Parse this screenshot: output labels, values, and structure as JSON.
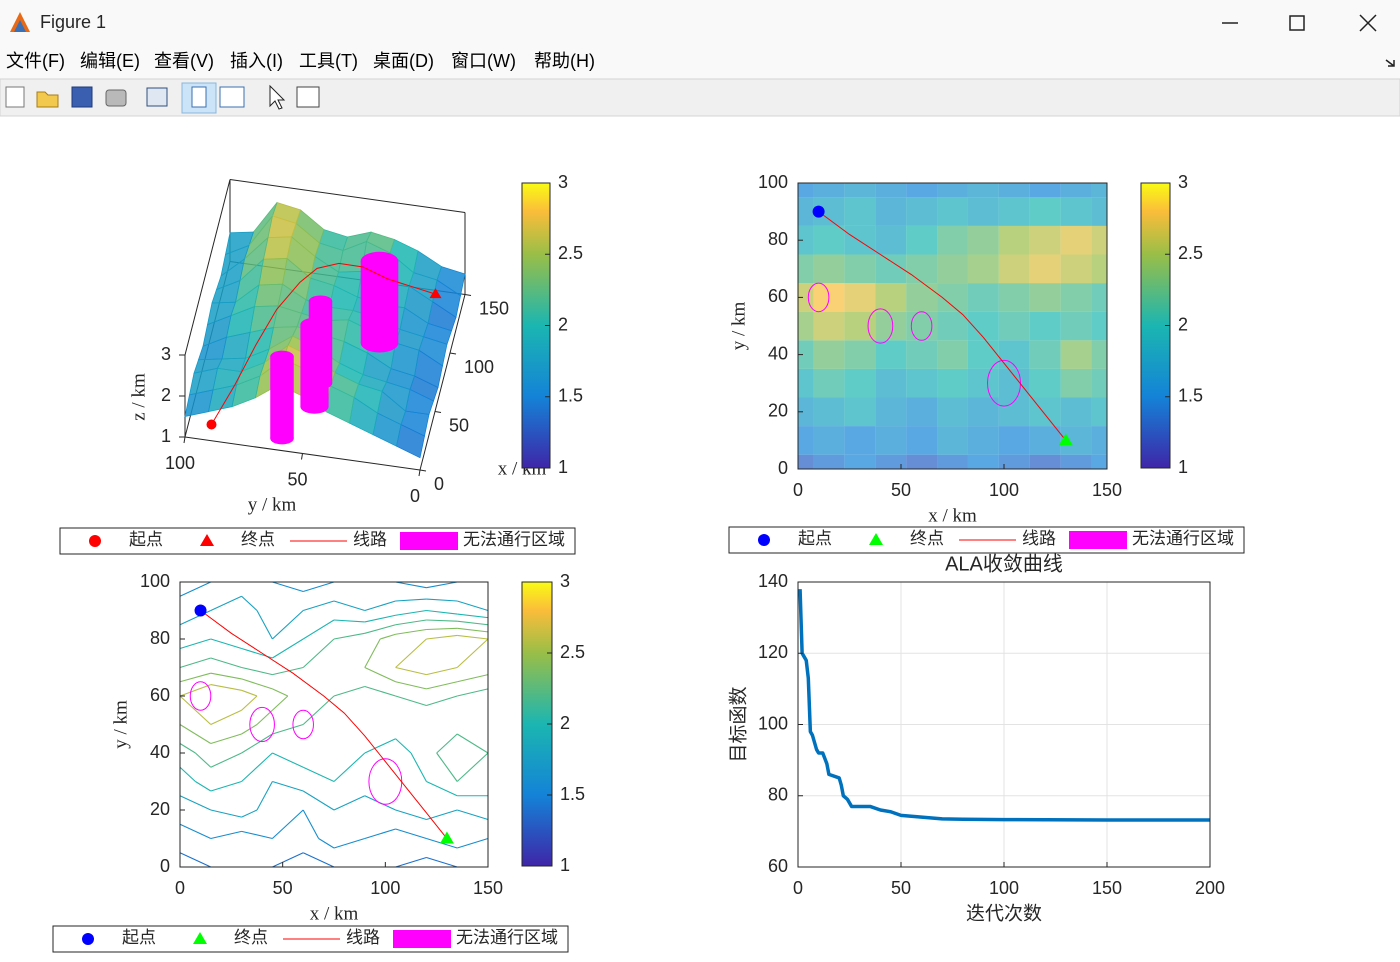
{
  "window": {
    "title": "Figure 1",
    "menu": [
      "文件(F)",
      "编辑(E)",
      "查看(V)",
      "插入(I)",
      "工具(T)",
      "桌面(D)",
      "窗口(W)",
      "帮助(H)"
    ]
  },
  "chart_data": [
    {
      "type": "surface3d",
      "xlabel": "x / km",
      "ylabel": "y / km",
      "zlabel": "z / km",
      "xlim": [
        0,
        150
      ],
      "ylim": [
        0,
        100
      ],
      "zlim": [
        1,
        3
      ],
      "xticks": [
        0,
        50,
        100,
        150
      ],
      "yticks": [
        0,
        50,
        100
      ],
      "zticks": [
        1,
        2,
        3
      ],
      "clim": [
        1,
        3
      ],
      "cticks": [
        1,
        1.5,
        2,
        2.5,
        3
      ],
      "x": [
        0,
        15,
        30,
        45,
        60,
        75,
        90,
        105,
        120,
        135,
        150
      ],
      "y": [
        0,
        10,
        20,
        30,
        40,
        50,
        60,
        70,
        80,
        90,
        100
      ],
      "z": [
        [
          1.3,
          1.4,
          1.5,
          1.4,
          1.3,
          1.4,
          1.5,
          1.4,
          1.3,
          1.4,
          1.5
        ],
        [
          1.5,
          1.6,
          1.5,
          1.6,
          1.5,
          1.7,
          1.6,
          1.5,
          1.6,
          1.7,
          1.6
        ],
        [
          1.7,
          1.8,
          1.9,
          1.7,
          1.6,
          1.8,
          1.7,
          1.8,
          1.9,
          1.8,
          1.9
        ],
        [
          1.9,
          2.1,
          2.0,
          1.8,
          1.9,
          2.0,
          1.9,
          1.8,
          2.0,
          2.2,
          2.1
        ],
        [
          2.1,
          2.3,
          2.2,
          2.0,
          2.1,
          2.2,
          2.0,
          1.9,
          2.1,
          2.4,
          2.2
        ],
        [
          2.4,
          2.6,
          2.5,
          2.3,
          2.2,
          2.1,
          2.0,
          2.1,
          2.0,
          2.1,
          2.0
        ],
        [
          2.6,
          2.8,
          2.7,
          2.5,
          2.3,
          2.2,
          2.1,
          2.2,
          2.3,
          2.2,
          2.1
        ],
        [
          2.2,
          2.3,
          2.2,
          2.1,
          2.2,
          2.3,
          2.4,
          2.6,
          2.7,
          2.6,
          2.5
        ],
        [
          1.9,
          2.0,
          1.9,
          1.8,
          2.0,
          2.2,
          2.3,
          2.5,
          2.6,
          2.7,
          2.6
        ],
        [
          1.7,
          1.8,
          1.9,
          1.7,
          1.8,
          1.9,
          1.8,
          1.9,
          2.0,
          1.9,
          1.8
        ],
        [
          1.5,
          1.6,
          1.7,
          1.6,
          1.5,
          1.6,
          1.7,
          1.6,
          1.5,
          1.6,
          1.7
        ]
      ],
      "start": {
        "x": 10,
        "y": 90,
        "z": 1.1,
        "color": "#ff0000"
      },
      "end": {
        "x": 130,
        "y": 10,
        "z": 1.5,
        "color": "#ff0000"
      },
      "route": {
        "x": [
          10,
          25,
          40,
          55,
          70,
          80,
          90,
          100,
          110,
          120,
          130
        ],
        "y": [
          90,
          82,
          75,
          68,
          60,
          54,
          46,
          37,
          28,
          19,
          10
        ],
        "z": [
          1.1,
          1.7,
          2.3,
          2.8,
          3.1,
          3.2,
          3.1,
          2.8,
          2.3,
          1.9,
          1.5
        ],
        "color": "#ff0000"
      },
      "obstacles": [
        {
          "x": 10,
          "y": 60,
          "r": 5
        },
        {
          "x": 40,
          "y": 50,
          "r": 6
        },
        {
          "x": 60,
          "y": 50,
          "r": 5
        },
        {
          "x": 100,
          "y": 30,
          "r": 8
        }
      ],
      "obstacle_color": "#ff00ff",
      "legend": [
        "起点",
        "终点",
        "线路",
        "无法通行区域"
      ]
    },
    {
      "type": "heatmap",
      "xlabel": "x / km",
      "ylabel": "y / km",
      "xlim": [
        0,
        150
      ],
      "ylim": [
        0,
        100
      ],
      "xticks": [
        0,
        50,
        100,
        150
      ],
      "yticks": [
        0,
        20,
        40,
        60,
        80,
        100
      ],
      "clim": [
        1,
        3
      ],
      "cticks": [
        1,
        1.5,
        2,
        2.5,
        3
      ],
      "x": [
        0,
        15,
        30,
        45,
        60,
        75,
        90,
        105,
        120,
        135,
        150
      ],
      "y": [
        0,
        10,
        20,
        30,
        40,
        50,
        60,
        70,
        80,
        90,
        100
      ],
      "z": [
        [
          1.3,
          1.4,
          1.5,
          1.4,
          1.3,
          1.4,
          1.5,
          1.4,
          1.3,
          1.4,
          1.5
        ],
        [
          1.5,
          1.6,
          1.5,
          1.6,
          1.5,
          1.7,
          1.6,
          1.5,
          1.6,
          1.7,
          1.6
        ],
        [
          1.7,
          1.8,
          1.9,
          1.7,
          1.6,
          1.8,
          1.7,
          1.8,
          1.9,
          1.8,
          1.9
        ],
        [
          1.9,
          2.1,
          2.0,
          1.8,
          1.9,
          2.0,
          1.9,
          1.8,
          2.0,
          2.2,
          2.1
        ],
        [
          2.1,
          2.3,
          2.2,
          2.0,
          2.1,
          2.2,
          2.0,
          1.9,
          2.1,
          2.4,
          2.2
        ],
        [
          2.4,
          2.6,
          2.5,
          2.3,
          2.2,
          2.1,
          2.0,
          2.1,
          2.0,
          2.1,
          2.0
        ],
        [
          2.6,
          2.8,
          2.7,
          2.5,
          2.3,
          2.2,
          2.1,
          2.2,
          2.3,
          2.2,
          2.1
        ],
        [
          2.2,
          2.3,
          2.2,
          2.1,
          2.2,
          2.3,
          2.4,
          2.6,
          2.7,
          2.6,
          2.5
        ],
        [
          1.9,
          2.0,
          1.9,
          1.8,
          2.0,
          2.2,
          2.3,
          2.5,
          2.6,
          2.7,
          2.6
        ],
        [
          1.7,
          1.8,
          1.9,
          1.7,
          1.8,
          1.9,
          1.8,
          1.9,
          2.0,
          1.9,
          1.8
        ],
        [
          1.5,
          1.6,
          1.7,
          1.6,
          1.5,
          1.6,
          1.7,
          1.6,
          1.5,
          1.6,
          1.7
        ]
      ],
      "start": {
        "x": 10,
        "y": 90,
        "color": "#0000ff"
      },
      "end": {
        "x": 130,
        "y": 10,
        "color": "#00ff00"
      },
      "route": {
        "x": [
          10,
          25,
          40,
          55,
          70,
          80,
          90,
          100,
          110,
          120,
          130
        ],
        "y": [
          90,
          82,
          75,
          68,
          60,
          54,
          46,
          37,
          28,
          19,
          10
        ],
        "color": "#ff0000"
      },
      "obstacles": [
        {
          "x": 10,
          "y": 60,
          "r": 5
        },
        {
          "x": 40,
          "y": 50,
          "r": 6
        },
        {
          "x": 60,
          "y": 50,
          "r": 5
        },
        {
          "x": 100,
          "y": 30,
          "r": 8
        }
      ],
      "obstacle_color": "#ff00ff",
      "legend": [
        "起点",
        "终点",
        "线路",
        "无法通行区域"
      ]
    },
    {
      "type": "contour",
      "xlabel": "x / km",
      "ylabel": "y / km",
      "xlim": [
        0,
        150
      ],
      "ylim": [
        0,
        100
      ],
      "xticks": [
        0,
        50,
        100,
        150
      ],
      "yticks": [
        0,
        20,
        40,
        60,
        80,
        100
      ],
      "clim": [
        1,
        3
      ],
      "cticks": [
        1,
        1.5,
        2,
        2.5,
        3
      ],
      "levels": [
        1.2,
        1.4,
        1.6,
        1.8,
        2.0,
        2.2,
        2.4,
        2.6,
        2.8
      ],
      "x": [
        0,
        15,
        30,
        45,
        60,
        75,
        90,
        105,
        120,
        135,
        150
      ],
      "y": [
        0,
        10,
        20,
        30,
        40,
        50,
        60,
        70,
        80,
        90,
        100
      ],
      "z": [
        [
          1.3,
          1.4,
          1.5,
          1.4,
          1.3,
          1.4,
          1.5,
          1.4,
          1.3,
          1.4,
          1.5
        ],
        [
          1.5,
          1.6,
          1.5,
          1.6,
          1.5,
          1.7,
          1.6,
          1.5,
          1.6,
          1.7,
          1.6
        ],
        [
          1.7,
          1.8,
          1.9,
          1.7,
          1.6,
          1.8,
          1.7,
          1.8,
          1.9,
          1.8,
          1.9
        ],
        [
          1.9,
          2.1,
          2.0,
          1.8,
          1.9,
          2.0,
          1.9,
          1.8,
          2.0,
          2.2,
          2.1
        ],
        [
          2.1,
          2.3,
          2.2,
          2.0,
          2.1,
          2.2,
          2.0,
          1.9,
          2.1,
          2.4,
          2.2
        ],
        [
          2.4,
          2.6,
          2.5,
          2.3,
          2.2,
          2.1,
          2.0,
          2.1,
          2.0,
          2.1,
          2.0
        ],
        [
          2.6,
          2.8,
          2.7,
          2.5,
          2.3,
          2.2,
          2.1,
          2.2,
          2.3,
          2.2,
          2.1
        ],
        [
          2.2,
          2.3,
          2.2,
          2.1,
          2.2,
          2.3,
          2.4,
          2.6,
          2.7,
          2.6,
          2.5
        ],
        [
          1.9,
          2.0,
          1.9,
          1.8,
          2.0,
          2.2,
          2.3,
          2.5,
          2.6,
          2.7,
          2.6
        ],
        [
          1.7,
          1.8,
          1.9,
          1.7,
          1.8,
          1.9,
          1.8,
          1.9,
          2.0,
          1.9,
          1.8
        ],
        [
          1.5,
          1.6,
          1.7,
          1.6,
          1.5,
          1.6,
          1.7,
          1.6,
          1.5,
          1.6,
          1.7
        ]
      ],
      "start": {
        "x": 10,
        "y": 90,
        "color": "#0000ff"
      },
      "end": {
        "x": 130,
        "y": 10,
        "color": "#00ff00"
      },
      "route": {
        "x": [
          10,
          25,
          40,
          55,
          70,
          80,
          90,
          100,
          110,
          120,
          130
        ],
        "y": [
          90,
          82,
          75,
          68,
          60,
          54,
          46,
          37,
          28,
          19,
          10
        ],
        "color": "#ff0000"
      },
      "obstacles": [
        {
          "x": 10,
          "y": 60,
          "r": 5
        },
        {
          "x": 40,
          "y": 50,
          "r": 6
        },
        {
          "x": 60,
          "y": 50,
          "r": 5
        },
        {
          "x": 100,
          "y": 30,
          "r": 8
        }
      ],
      "obstacle_color": "#ff00ff",
      "legend": [
        "起点",
        "终点",
        "线路",
        "无法通行区域"
      ]
    },
    {
      "type": "line",
      "title": "ALA收敛曲线",
      "xlabel": "迭代次数",
      "ylabel": "目标函数",
      "xlim": [
        0,
        200
      ],
      "ylim": [
        60,
        140
      ],
      "xticks": [
        0,
        50,
        100,
        150,
        200
      ],
      "yticks": [
        60,
        80,
        100,
        120,
        140
      ],
      "grid": true,
      "color": "#0072bd",
      "x": [
        1,
        2,
        3,
        4,
        5,
        6,
        7,
        8,
        9,
        10,
        12,
        14,
        15,
        20,
        21,
        22,
        24,
        26,
        30,
        35,
        40,
        45,
        50,
        60,
        70,
        80,
        100,
        150,
        200
      ],
      "values": [
        138,
        120,
        119,
        118,
        113,
        98,
        97,
        95,
        93,
        92,
        92,
        89,
        86,
        85,
        83,
        80,
        79,
        77,
        77,
        77,
        76,
        75.5,
        74.5,
        74,
        73.5,
        73.4,
        73.3,
        73.2,
        73.2
      ]
    }
  ]
}
